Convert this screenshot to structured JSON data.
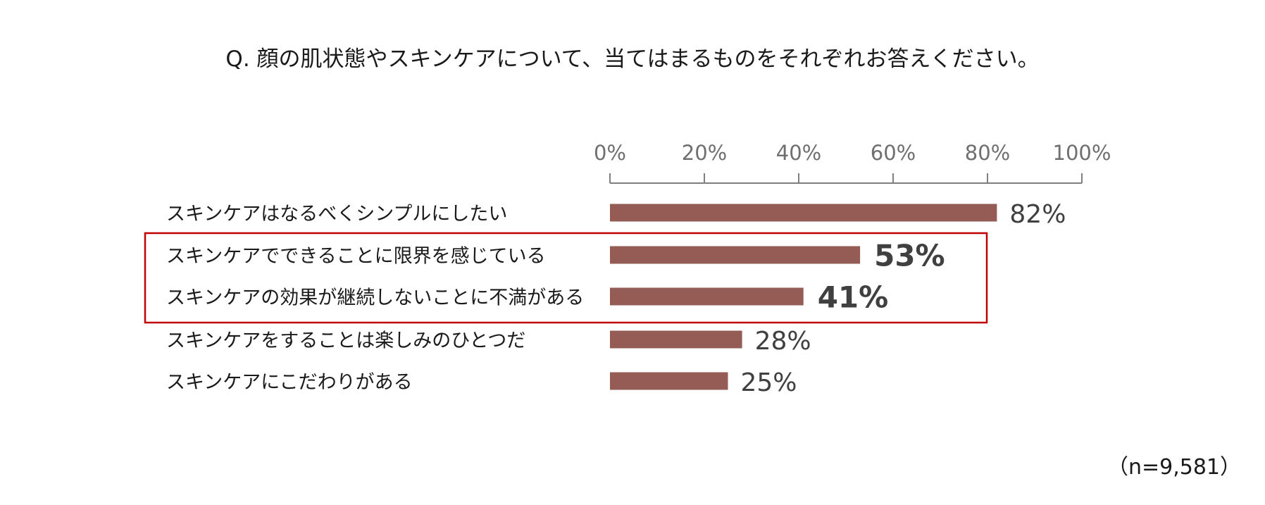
{
  "question": "Q. 顔の肌状態やスキンケアについて、当てはまるものをそれぞれお答えください。",
  "sample_size": "（n=9,581）",
  "colors": {
    "bar": "#955C55",
    "axis": "#7F7F7F",
    "tick_text": "#6F6F6F",
    "value_text": "#404040",
    "highlight_box": "#C00000"
  },
  "chart_data": {
    "type": "bar",
    "orientation": "horizontal",
    "title": "Q. 顔の肌状態やスキンケアについて、当てはまるものをそれぞれお答えください。",
    "xlabel": "",
    "ylabel": "",
    "xlim": [
      0,
      100
    ],
    "x_ticks": [
      "0%",
      "20%",
      "40%",
      "60%",
      "80%",
      "100%"
    ],
    "x_tick_values": [
      0,
      20,
      40,
      60,
      80,
      100
    ],
    "x_axis_position": "top",
    "grid": false,
    "legend": "none",
    "unit": "%",
    "categories": [
      "スキンケアはなるべくシンプルにしたい",
      "スキンケアでできることに限界を感じている",
      "スキンケアの効果が継続しないことに不満がある",
      "スキンケアをすることは楽しみのひとつだ",
      "スキンケアにこだわりがある"
    ],
    "values": [
      82,
      53,
      41,
      28,
      25
    ],
    "value_labels": [
      "82%",
      "53%",
      "41%",
      "28%",
      "25%"
    ],
    "highlighted": [
      false,
      true,
      true,
      false,
      false
    ],
    "annotation": "highlight box around rows 2 and 3"
  }
}
